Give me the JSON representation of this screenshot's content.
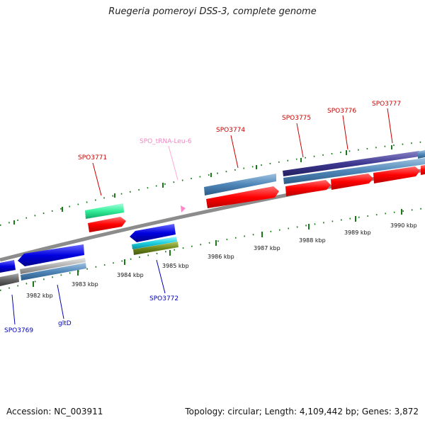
{
  "title": "Ruegeria pomeroyi DSS-3, complete genome",
  "footer": {
    "accession": "Accession: NC_003911",
    "summary": "Topology: circular; Length: 4,109,442 bp; Genes: 3,872"
  },
  "colors": {
    "backbone": "#8c8c8c",
    "forward_label": "#cc0000",
    "reverse_label": "#0000bb",
    "trna_label": "#e878b8",
    "cds_forward": "#ff0000",
    "cds_reverse": "#0000ee",
    "tick": "#1a7a1a"
  },
  "scale_labels": [
    "3982 kbp",
    "3983 kbp",
    "3984 kbp",
    "3985 kbp",
    "3986 kbp",
    "3987 kbp",
    "3988 kbp",
    "3989 kbp",
    "3990 kbp"
  ],
  "gene_labels": {
    "forward": [
      "SPO3771",
      "SPO3774",
      "SPO3775",
      "SPO3776",
      "SPO3777"
    ],
    "reverse": [
      "SPO3769",
      "gltD",
      "SPO3772"
    ],
    "rna": [
      "SPO_tRNA-Leu-6"
    ]
  }
}
